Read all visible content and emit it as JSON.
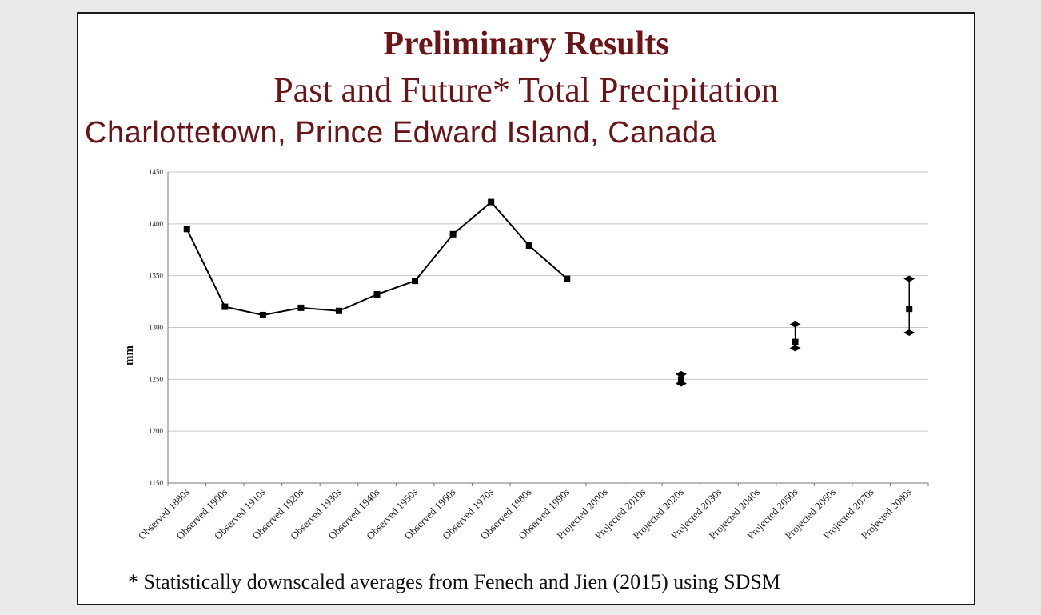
{
  "slide": {
    "title": "Preliminary Results",
    "subtitle": "Past and Future* Total Precipitation",
    "location": "Charlottetown, Prince Edward Island, Canada",
    "footnote": "* Statistically downscaled averages from Fenech and Jien (2015) using SDSM"
  },
  "colors": {
    "title": "#6b1418",
    "series": "#000000",
    "grid": "#c8c8c8"
  },
  "chart_data": {
    "type": "line",
    "ylabel": "mm",
    "ylim": [
      1150,
      1450
    ],
    "yticks": [
      1150,
      1200,
      1250,
      1300,
      1350,
      1400,
      1450
    ],
    "grid": true,
    "categories": [
      "Observed 1880s",
      "Observed 1900s",
      "Observed 1910s",
      "Observed 1920s",
      "Observed 1930s",
      "Observed 1940s",
      "Observed 1950s",
      "Observed 1960s",
      "Observed 1970s",
      "Observed 1980s",
      "Observed 1990s",
      "Projected 2000s",
      "Projected 2010s",
      "Projected 2020s",
      "Projected 2030s",
      "Projected 2040s",
      "Projected 2050s",
      "Projected 2060s",
      "Projected 2070s",
      "Projected 2080s"
    ],
    "observed": {
      "categories": [
        "Observed 1880s",
        "Observed 1900s",
        "Observed 1910s",
        "Observed 1920s",
        "Observed 1930s",
        "Observed 1940s",
        "Observed 1950s",
        "Observed 1960s",
        "Observed 1970s",
        "Observed 1980s",
        "Observed 1990s"
      ],
      "values": [
        1395,
        1320,
        1312,
        1319,
        1316,
        1332,
        1345,
        1390,
        1421,
        1379,
        1347
      ]
    },
    "projected": [
      {
        "category": "Projected 2020s",
        "mean": 1250,
        "low": 1246,
        "high": 1255
      },
      {
        "category": "Projected 2050s",
        "mean": 1286,
        "low": 1280,
        "high": 1303
      },
      {
        "category": "Projected 2080s",
        "mean": 1318,
        "low": 1295,
        "high": 1347
      }
    ]
  }
}
